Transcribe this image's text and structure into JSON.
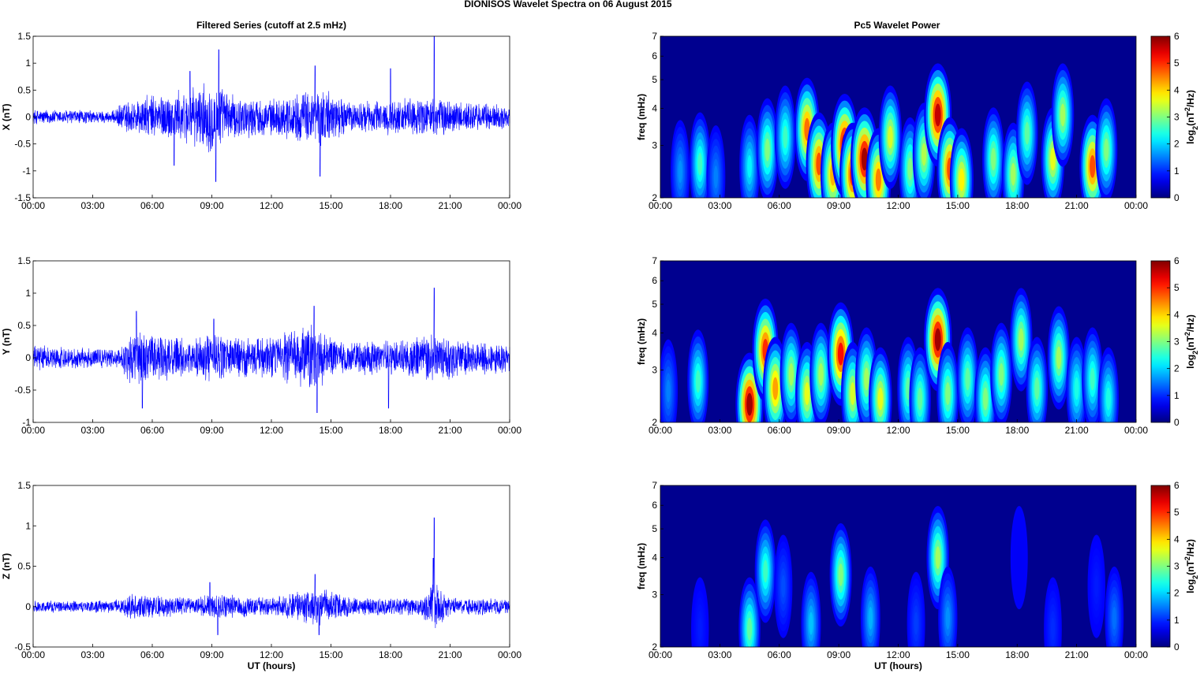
{
  "figure": {
    "title": "DIONISOS Wavelet Spectra on 06 August    2015",
    "left_column_title": "Filtered Series (cutoff at 2.5 mHz)",
    "right_column_title": "Pc5 Wavelet Power",
    "xlabel": "UT (hours)"
  },
  "colors": {
    "series": "#0000ff",
    "spectrum_background": "#00008f"
  },
  "chart_data": [
    {
      "type": "line",
      "title": "Filtered Series (cutoff at 2.5 mHz)",
      "ylabel": "X (nT)",
      "xlabel": "",
      "x_range_hours": [
        0,
        24
      ],
      "ylim": [
        -1.5,
        1.5
      ],
      "y_ticks": [
        "-1.5",
        "-1",
        "-0.5",
        "0",
        "0.5",
        "1",
        "1.5"
      ],
      "x_ticks": [
        "00:00",
        "03:00",
        "06:00",
        "09:00",
        "12:00",
        "15:00",
        "18:00",
        "21:00",
        "00:00"
      ],
      "envelope": [
        {
          "hour": 0,
          "amplitude": 0.15
        },
        {
          "hour": 2,
          "amplitude": 0.15
        },
        {
          "hour": 4,
          "amplitude": 0.12
        },
        {
          "hour": 4.5,
          "amplitude": 0.3
        },
        {
          "hour": 6,
          "amplitude": 0.45
        },
        {
          "hour": 8,
          "amplitude": 0.55
        },
        {
          "hour": 9,
          "amplitude": 0.75
        },
        {
          "hour": 10,
          "amplitude": 0.45
        },
        {
          "hour": 12,
          "amplitude": 0.35
        },
        {
          "hour": 14.5,
          "amplitude": 0.6
        },
        {
          "hour": 16,
          "amplitude": 0.3
        },
        {
          "hour": 18,
          "amplitude": 0.35
        },
        {
          "hour": 20,
          "amplitude": 0.4
        },
        {
          "hour": 22,
          "amplitude": 0.3
        },
        {
          "hour": 24,
          "amplitude": 0.25
        }
      ],
      "spikes": [
        {
          "hour": 9.35,
          "value": 1.25
        },
        {
          "hour": 9.2,
          "value": -1.2
        },
        {
          "hour": 14.45,
          "value": -1.1
        },
        {
          "hour": 14.2,
          "value": 0.95
        },
        {
          "hour": 20.2,
          "value": 1.5
        },
        {
          "hour": 18.0,
          "value": 0.9
        },
        {
          "hour": 7.9,
          "value": 0.85
        },
        {
          "hour": 7.1,
          "value": -0.9
        }
      ]
    },
    {
      "type": "line",
      "ylabel": "Y (nT)",
      "xlabel": "",
      "x_range_hours": [
        0,
        24
      ],
      "ylim": [
        -1,
        1.5
      ],
      "y_ticks": [
        "-1",
        "-0.5",
        "0",
        "0.5",
        "1",
        "1.5"
      ],
      "x_ticks": [
        "00:00",
        "03:00",
        "06:00",
        "09:00",
        "12:00",
        "15:00",
        "18:00",
        "21:00",
        "00:00"
      ],
      "envelope": [
        {
          "hour": 0,
          "amplitude": 0.2
        },
        {
          "hour": 2,
          "amplitude": 0.18
        },
        {
          "hour": 4.3,
          "amplitude": 0.15
        },
        {
          "hour": 5,
          "amplitude": 0.5
        },
        {
          "hour": 6,
          "amplitude": 0.4
        },
        {
          "hour": 8,
          "amplitude": 0.3
        },
        {
          "hour": 9.2,
          "amplitude": 0.45
        },
        {
          "hour": 11,
          "amplitude": 0.3
        },
        {
          "hour": 14.2,
          "amplitude": 0.55
        },
        {
          "hour": 15.5,
          "amplitude": 0.25
        },
        {
          "hour": 18,
          "amplitude": 0.3
        },
        {
          "hour": 20.2,
          "amplitude": 0.4
        },
        {
          "hour": 22,
          "amplitude": 0.28
        },
        {
          "hour": 24,
          "amplitude": 0.25
        }
      ],
      "spikes": [
        {
          "hour": 14.15,
          "value": 0.8
        },
        {
          "hour": 14.3,
          "value": -0.85
        },
        {
          "hour": 20.2,
          "value": 1.08
        },
        {
          "hour": 17.9,
          "value": -0.78
        },
        {
          "hour": 5.5,
          "value": -0.78
        },
        {
          "hour": 5.2,
          "value": 0.72
        },
        {
          "hour": 9.1,
          "value": 0.6
        }
      ]
    },
    {
      "type": "line",
      "ylabel": "Z (nT)",
      "xlabel": "UT (hours)",
      "x_range_hours": [
        0,
        24
      ],
      "ylim": [
        -0.5,
        1.5
      ],
      "y_ticks": [
        "-0.5",
        "0",
        "0.5",
        "1",
        "1.5"
      ],
      "x_ticks": [
        "00:00",
        "03:00",
        "06:00",
        "09:00",
        "12:00",
        "15:00",
        "18:00",
        "21:00",
        "00:00"
      ],
      "envelope": [
        {
          "hour": 0,
          "amplitude": 0.08
        },
        {
          "hour": 4,
          "amplitude": 0.08
        },
        {
          "hour": 5,
          "amplitude": 0.18
        },
        {
          "hour": 8,
          "amplitude": 0.12
        },
        {
          "hour": 9.2,
          "amplitude": 0.18
        },
        {
          "hour": 12,
          "amplitude": 0.12
        },
        {
          "hour": 14.3,
          "amplitude": 0.25
        },
        {
          "hour": 16,
          "amplitude": 0.12
        },
        {
          "hour": 19.5,
          "amplitude": 0.12
        },
        {
          "hour": 20.2,
          "amplitude": 0.35
        },
        {
          "hour": 21,
          "amplitude": 0.12
        },
        {
          "hour": 24,
          "amplitude": 0.1
        }
      ],
      "spikes": [
        {
          "hour": 20.2,
          "value": 1.1
        },
        {
          "hour": 20.15,
          "value": 0.6
        },
        {
          "hour": 14.2,
          "value": 0.4
        },
        {
          "hour": 14.4,
          "value": -0.35
        },
        {
          "hour": 9.3,
          "value": -0.35
        },
        {
          "hour": 8.9,
          "value": 0.3
        }
      ]
    },
    {
      "type": "heatmap",
      "title": "Pc5 Wavelet Power",
      "ylabel": "freq (mHz)",
      "xlabel": "",
      "y_scale": "log",
      "ylim": [
        2,
        7
      ],
      "y_ticks": [
        2,
        3,
        4,
        5,
        6,
        7
      ],
      "x_range_hours": [
        0,
        24
      ],
      "x_ticks": [
        "00:00",
        "03:00",
        "06:00",
        "09:00",
        "12:00",
        "15:00",
        "18:00",
        "21:00",
        "00:00"
      ],
      "colorbar": {
        "label": "log2(nT^2/Hz)",
        "range": [
          0,
          6
        ],
        "ticks": [
          0,
          1,
          2,
          3,
          4,
          5,
          6
        ]
      },
      "blobs": [
        {
          "hour": 1.0,
          "freq": 2.45,
          "power": 1.6
        },
        {
          "hour": 2.0,
          "freq": 2.6,
          "power": 2.6
        },
        {
          "hour": 2.8,
          "freq": 2.35,
          "power": 1.5
        },
        {
          "hour": 4.5,
          "freq": 2.55,
          "power": 2.2
        },
        {
          "hour": 5.4,
          "freq": 2.9,
          "power": 3.0
        },
        {
          "hour": 6.3,
          "freq": 3.2,
          "power": 2.6
        },
        {
          "hour": 7.4,
          "freq": 3.4,
          "power": 4.6
        },
        {
          "hour": 8.0,
          "freq": 2.6,
          "power": 4.8
        },
        {
          "hour": 8.7,
          "freq": 2.4,
          "power": 4.2
        },
        {
          "hour": 9.3,
          "freq": 3.0,
          "power": 5.6
        },
        {
          "hour": 9.7,
          "freq": 2.4,
          "power": 5.0
        },
        {
          "hour": 10.3,
          "freq": 2.7,
          "power": 5.8
        },
        {
          "hour": 11.0,
          "freq": 2.3,
          "power": 4.5
        },
        {
          "hour": 11.6,
          "freq": 3.2,
          "power": 3.5
        },
        {
          "hour": 12.6,
          "freq": 2.5,
          "power": 3.0
        },
        {
          "hour": 13.3,
          "freq": 2.8,
          "power": 3.3
        },
        {
          "hour": 14.0,
          "freq": 3.8,
          "power": 5.6
        },
        {
          "hour": 14.6,
          "freq": 2.5,
          "power": 4.8
        },
        {
          "hour": 15.2,
          "freq": 2.3,
          "power": 3.8
        },
        {
          "hour": 16.8,
          "freq": 2.7,
          "power": 3.0
        },
        {
          "hour": 17.8,
          "freq": 2.4,
          "power": 3.2
        },
        {
          "hour": 18.5,
          "freq": 3.3,
          "power": 2.8
        },
        {
          "hour": 19.8,
          "freq": 2.7,
          "power": 3.6
        },
        {
          "hour": 20.3,
          "freq": 3.8,
          "power": 3.2
        },
        {
          "hour": 21.8,
          "freq": 2.55,
          "power": 4.8
        },
        {
          "hour": 22.5,
          "freq": 2.9,
          "power": 3.0
        }
      ]
    },
    {
      "type": "heatmap",
      "ylabel": "freq (mHz)",
      "xlabel": "",
      "y_scale": "log",
      "ylim": [
        2,
        7
      ],
      "y_ticks": [
        2,
        3,
        4,
        5,
        6,
        7
      ],
      "x_range_hours": [
        0,
        24
      ],
      "x_ticks": [
        "00:00",
        "03:00",
        "06:00",
        "09:00",
        "12:00",
        "15:00",
        "18:00",
        "21:00",
        "00:00"
      ],
      "colorbar": {
        "label": "log2(nT^2/Hz)",
        "range": [
          0,
          6
        ],
        "ticks": [
          0,
          1,
          2,
          3,
          4,
          5,
          6
        ]
      },
      "blobs": [
        {
          "hour": 0.4,
          "freq": 2.55,
          "power": 1.5
        },
        {
          "hour": 1.9,
          "freq": 2.75,
          "power": 2.6
        },
        {
          "hour": 4.5,
          "freq": 2.3,
          "power": 5.8
        },
        {
          "hour": 5.3,
          "freq": 3.5,
          "power": 5.0
        },
        {
          "hour": 5.8,
          "freq": 2.6,
          "power": 4.3
        },
        {
          "hour": 6.6,
          "freq": 2.9,
          "power": 3.2
        },
        {
          "hour": 7.4,
          "freq": 2.5,
          "power": 3.6
        },
        {
          "hour": 8.1,
          "freq": 2.9,
          "power": 3.2
        },
        {
          "hour": 9.1,
          "freq": 3.4,
          "power": 5.2
        },
        {
          "hour": 9.7,
          "freq": 2.5,
          "power": 3.5
        },
        {
          "hour": 10.4,
          "freq": 2.8,
          "power": 3.2
        },
        {
          "hour": 11.1,
          "freq": 2.4,
          "power": 3.6
        },
        {
          "hour": 12.5,
          "freq": 2.6,
          "power": 2.8
        },
        {
          "hour": 13.1,
          "freq": 2.4,
          "power": 2.8
        },
        {
          "hour": 14.0,
          "freq": 3.8,
          "power": 5.8
        },
        {
          "hour": 14.5,
          "freq": 2.5,
          "power": 3.0
        },
        {
          "hour": 15.5,
          "freq": 2.8,
          "power": 2.8
        },
        {
          "hour": 16.4,
          "freq": 2.4,
          "power": 3.0
        },
        {
          "hour": 17.2,
          "freq": 2.9,
          "power": 3.0
        },
        {
          "hour": 18.2,
          "freq": 3.8,
          "power": 3.2
        },
        {
          "hour": 19.0,
          "freq": 2.6,
          "power": 2.8
        },
        {
          "hour": 20.1,
          "freq": 3.3,
          "power": 3.2
        },
        {
          "hour": 21.0,
          "freq": 2.6,
          "power": 2.4
        },
        {
          "hour": 21.8,
          "freq": 2.8,
          "power": 2.6
        },
        {
          "hour": 22.6,
          "freq": 2.4,
          "power": 2.4
        }
      ]
    },
    {
      "type": "heatmap",
      "ylabel": "freq (mHz)",
      "xlabel": "UT (hours)",
      "y_scale": "log",
      "ylim": [
        2,
        7
      ],
      "y_ticks": [
        2,
        3,
        4,
        5,
        6,
        7
      ],
      "x_range_hours": [
        0,
        24
      ],
      "x_ticks": [
        "00:00",
        "03:00",
        "06:00",
        "09:00",
        "12:00",
        "15:00",
        "18:00",
        "21:00",
        "00:00"
      ],
      "colorbar": {
        "label": "log2(nT^2/Hz)",
        "range": [
          0,
          6
        ],
        "ticks": [
          0,
          1,
          2,
          3,
          4,
          5,
          6
        ]
      },
      "blobs": [
        {
          "hour": 2.0,
          "freq": 2.3,
          "power": 0.9
        },
        {
          "hour": 4.5,
          "freq": 2.3,
          "power": 2.8
        },
        {
          "hour": 5.3,
          "freq": 3.6,
          "power": 2.6
        },
        {
          "hour": 6.2,
          "freq": 3.2,
          "power": 1.2
        },
        {
          "hour": 7.6,
          "freq": 2.4,
          "power": 1.9
        },
        {
          "hour": 9.1,
          "freq": 3.5,
          "power": 3.0
        },
        {
          "hour": 10.6,
          "freq": 2.5,
          "power": 1.8
        },
        {
          "hour": 12.9,
          "freq": 2.4,
          "power": 1.1
        },
        {
          "hour": 14.0,
          "freq": 4.0,
          "power": 3.2
        },
        {
          "hour": 14.5,
          "freq": 2.5,
          "power": 1.6
        },
        {
          "hour": 18.1,
          "freq": 4.0,
          "power": 0.7
        },
        {
          "hour": 19.8,
          "freq": 2.3,
          "power": 1.0
        },
        {
          "hour": 22.0,
          "freq": 3.2,
          "power": 0.9
        },
        {
          "hour": 22.9,
          "freq": 2.5,
          "power": 1.4
        }
      ]
    }
  ]
}
